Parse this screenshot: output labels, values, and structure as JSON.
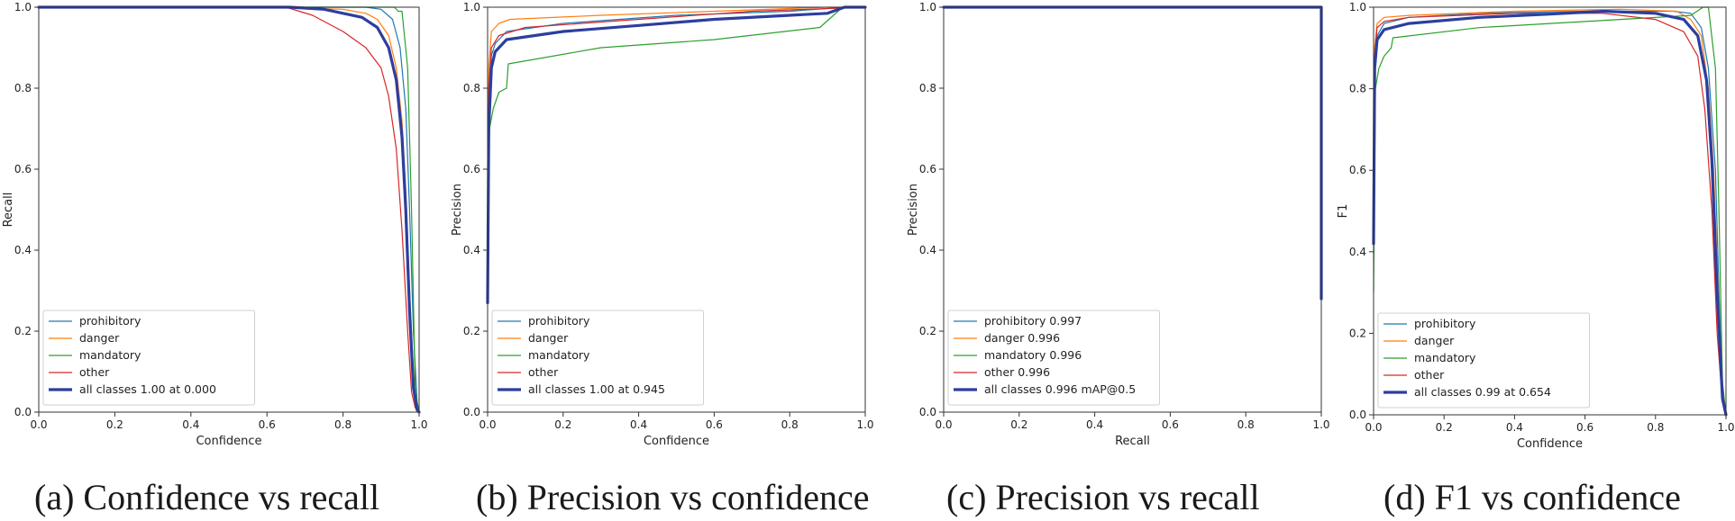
{
  "chart_data": [
    {
      "type": "line",
      "title": "",
      "caption": "(a) Confidence vs recall",
      "xlabel": "Confidence",
      "ylabel": "Recall",
      "xlim": [
        0,
        1
      ],
      "ylim": [
        0,
        1
      ],
      "xticks": [
        "0.0",
        "0.2",
        "0.4",
        "0.6",
        "0.8",
        "1.0"
      ],
      "yticks": [
        "0.0",
        "0.2",
        "0.4",
        "0.6",
        "0.8",
        "1.0"
      ],
      "legend_position": "lower-left",
      "series": [
        {
          "name": "prohibitory",
          "color": "#1f77b4",
          "width": 1.2,
          "x": [
            0,
            0.6,
            0.8,
            0.86,
            0.9,
            0.93,
            0.95,
            0.965,
            0.975,
            0.985,
            0.995,
            1.0
          ],
          "y": [
            1,
            1,
            1,
            1,
            0.995,
            0.97,
            0.9,
            0.75,
            0.5,
            0.2,
            0.02,
            0
          ]
        },
        {
          "name": "danger",
          "color": "#ff7f0e",
          "width": 1.2,
          "x": [
            0,
            0.6,
            0.8,
            0.86,
            0.89,
            0.92,
            0.94,
            0.955,
            0.965,
            0.975,
            0.985,
            0.995,
            1.0
          ],
          "y": [
            1,
            1,
            0.995,
            0.985,
            0.97,
            0.93,
            0.85,
            0.72,
            0.55,
            0.3,
            0.1,
            0.01,
            0
          ]
        },
        {
          "name": "mandatory",
          "color": "#2ca02c",
          "width": 1.2,
          "x": [
            0,
            0.8,
            0.9,
            0.935,
            0.945,
            0.955,
            0.97,
            0.98,
            0.99,
            1.0
          ],
          "y": [
            1,
            1,
            1,
            1,
            0.99,
            0.99,
            0.85,
            0.5,
            0.05,
            0
          ]
        },
        {
          "name": "other",
          "color": "#d62728",
          "width": 1.2,
          "x": [
            0,
            0.65,
            0.72,
            0.8,
            0.86,
            0.9,
            0.92,
            0.94,
            0.955,
            0.97,
            0.98,
            0.99,
            1.0
          ],
          "y": [
            1,
            1,
            0.98,
            0.94,
            0.9,
            0.85,
            0.78,
            0.65,
            0.45,
            0.2,
            0.05,
            0.01,
            0
          ]
        },
        {
          "name": "all classes 1.00 at 0.000",
          "color": "#2c3e9e",
          "width": 3.2,
          "x": [
            0,
            0.66,
            0.75,
            0.85,
            0.89,
            0.92,
            0.94,
            0.955,
            0.965,
            0.975,
            0.985,
            0.995,
            1.0
          ],
          "y": [
            1,
            1,
            0.995,
            0.975,
            0.95,
            0.9,
            0.82,
            0.68,
            0.5,
            0.25,
            0.06,
            0.005,
            0
          ]
        }
      ]
    },
    {
      "type": "line",
      "title": "",
      "caption": "(b) Precision vs confidence",
      "xlabel": "Confidence",
      "ylabel": "Precision",
      "xlim": [
        0,
        1
      ],
      "ylim": [
        0,
        1
      ],
      "xticks": [
        "0.0",
        "0.2",
        "0.4",
        "0.6",
        "0.8",
        "1.0"
      ],
      "yticks": [
        "0.0",
        "0.2",
        "0.4",
        "0.6",
        "0.8",
        "1.0"
      ],
      "legend_position": "lower-left",
      "series": [
        {
          "name": "prohibitory",
          "color": "#1f77b4",
          "width": 1.2,
          "x": [
            0,
            0.003,
            0.01,
            0.02,
            0.05,
            0.2,
            0.5,
            0.8,
            0.95,
            1.0
          ],
          "y": [
            0.3,
            0.75,
            0.88,
            0.91,
            0.94,
            0.96,
            0.98,
            0.99,
            1.0,
            1.0
          ]
        },
        {
          "name": "danger",
          "color": "#ff7f0e",
          "width": 1.2,
          "x": [
            0,
            0.003,
            0.01,
            0.03,
            0.06,
            0.3,
            0.6,
            0.9,
            1.0
          ],
          "y": [
            0.3,
            0.85,
            0.94,
            0.96,
            0.97,
            0.98,
            0.99,
            1.0,
            1.0
          ]
        },
        {
          "name": "mandatory",
          "color": "#2ca02c",
          "width": 1.2,
          "x": [
            0,
            0.005,
            0.015,
            0.03,
            0.05,
            0.055,
            0.3,
            0.6,
            0.88,
            0.94,
            1.0
          ],
          "y": [
            0.3,
            0.7,
            0.75,
            0.79,
            0.8,
            0.86,
            0.9,
            0.92,
            0.95,
            1.0,
            1.0
          ]
        },
        {
          "name": "other",
          "color": "#d62728",
          "width": 1.2,
          "x": [
            0,
            0.003,
            0.01,
            0.03,
            0.1,
            0.4,
            0.7,
            1.0
          ],
          "y": [
            0.3,
            0.8,
            0.9,
            0.93,
            0.95,
            0.97,
            0.99,
            1.0
          ]
        },
        {
          "name": "all classes 1.00 at 0.945",
          "color": "#2c3e9e",
          "width": 3.2,
          "x": [
            0,
            0.003,
            0.01,
            0.02,
            0.05,
            0.2,
            0.4,
            0.6,
            0.8,
            0.9,
            0.945,
            1.0
          ],
          "y": [
            0.27,
            0.7,
            0.85,
            0.89,
            0.92,
            0.94,
            0.955,
            0.97,
            0.98,
            0.985,
            1.0,
            1.0
          ]
        }
      ]
    },
    {
      "type": "line",
      "title": "",
      "caption": "(c) Precision vs recall",
      "xlabel": "Recall",
      "ylabel": "Precision",
      "xlim": [
        0,
        1
      ],
      "ylim": [
        0,
        1
      ],
      "xticks": [
        "0.0",
        "0.2",
        "0.4",
        "0.6",
        "0.8",
        "1.0"
      ],
      "yticks": [
        "0.0",
        "0.2",
        "0.4",
        "0.6",
        "0.8",
        "1.0"
      ],
      "legend_position": "lower-left",
      "series": [
        {
          "name": "prohibitory 0.997",
          "color": "#1f77b4",
          "width": 1.2,
          "x": [
            0,
            0.997,
            1.0,
            1.0
          ],
          "y": [
            1,
            1,
            1,
            0.28
          ]
        },
        {
          "name": "danger 0.996",
          "color": "#ff7f0e",
          "width": 1.2,
          "x": [
            0,
            0.996,
            1.0,
            1.0
          ],
          "y": [
            1,
            1,
            1,
            0.28
          ]
        },
        {
          "name": "mandatory 0.996",
          "color": "#2ca02c",
          "width": 1.2,
          "x": [
            0,
            0.996,
            1.0,
            1.0
          ],
          "y": [
            1,
            1,
            1,
            0.28
          ]
        },
        {
          "name": "other 0.996",
          "color": "#d62728",
          "width": 1.2,
          "x": [
            0,
            0.996,
            1.0,
            1.0
          ],
          "y": [
            1,
            1,
            1,
            0.28
          ]
        },
        {
          "name": "all classes 0.996 mAP@0.5",
          "color": "#2c3e9e",
          "width": 3.2,
          "x": [
            0,
            0.996,
            1.0,
            1.0
          ],
          "y": [
            1,
            1,
            1,
            0.28
          ]
        }
      ]
    },
    {
      "type": "line",
      "title": "",
      "caption": "(d) F1 vs confidence",
      "xlabel": "Confidence",
      "ylabel": "F1",
      "xlim": [
        0,
        1
      ],
      "ylim": [
        0,
        1
      ],
      "xticks": [
        "0.0",
        "0.2",
        "0.4",
        "0.6",
        "0.8",
        "1.0"
      ],
      "yticks": [
        "0.0",
        "0.2",
        "0.4",
        "0.6",
        "0.8",
        "1.0"
      ],
      "legend_position": "lower-left",
      "series": [
        {
          "name": "prohibitory",
          "color": "#1f77b4",
          "width": 1.2,
          "x": [
            0,
            0.003,
            0.01,
            0.03,
            0.1,
            0.3,
            0.6,
            0.85,
            0.9,
            0.93,
            0.95,
            0.97,
            0.98,
            0.99,
            1.0
          ],
          "y": [
            0.45,
            0.85,
            0.93,
            0.96,
            0.975,
            0.985,
            0.99,
            0.99,
            0.985,
            0.95,
            0.85,
            0.6,
            0.3,
            0.05,
            0
          ]
        },
        {
          "name": "danger",
          "color": "#ff7f0e",
          "width": 1.2,
          "x": [
            0,
            0.003,
            0.01,
            0.03,
            0.1,
            0.4,
            0.7,
            0.86,
            0.9,
            0.93,
            0.95,
            0.965,
            0.98,
            0.99,
            1.0
          ],
          "y": [
            0.5,
            0.9,
            0.96,
            0.975,
            0.98,
            0.99,
            0.995,
            0.99,
            0.97,
            0.93,
            0.8,
            0.6,
            0.25,
            0.04,
            0
          ]
        },
        {
          "name": "mandatory",
          "color": "#2ca02c",
          "width": 1.2,
          "x": [
            0,
            0.005,
            0.015,
            0.03,
            0.05,
            0.055,
            0.3,
            0.6,
            0.9,
            0.935,
            0.95,
            0.97,
            0.98,
            0.99,
            1.0
          ],
          "y": [
            0.3,
            0.8,
            0.85,
            0.88,
            0.9,
            0.925,
            0.95,
            0.965,
            0.98,
            1.0,
            1.0,
            0.85,
            0.5,
            0.08,
            0
          ]
        },
        {
          "name": "other",
          "color": "#d62728",
          "width": 1.2,
          "x": [
            0,
            0.003,
            0.01,
            0.03,
            0.1,
            0.4,
            0.65,
            0.8,
            0.88,
            0.92,
            0.94,
            0.96,
            0.975,
            0.99,
            1.0
          ],
          "y": [
            0.45,
            0.88,
            0.95,
            0.965,
            0.975,
            0.985,
            0.985,
            0.97,
            0.94,
            0.88,
            0.75,
            0.5,
            0.2,
            0.03,
            0
          ]
        },
        {
          "name": "all classes 0.99 at 0.654",
          "color": "#2c3e9e",
          "width": 3.2,
          "x": [
            0,
            0.003,
            0.01,
            0.03,
            0.1,
            0.3,
            0.5,
            0.654,
            0.8,
            0.88,
            0.92,
            0.945,
            0.96,
            0.975,
            0.99,
            1.0
          ],
          "y": [
            0.42,
            0.85,
            0.92,
            0.945,
            0.96,
            0.975,
            0.983,
            0.99,
            0.985,
            0.97,
            0.93,
            0.82,
            0.62,
            0.3,
            0.04,
            0
          ]
        }
      ]
    }
  ]
}
